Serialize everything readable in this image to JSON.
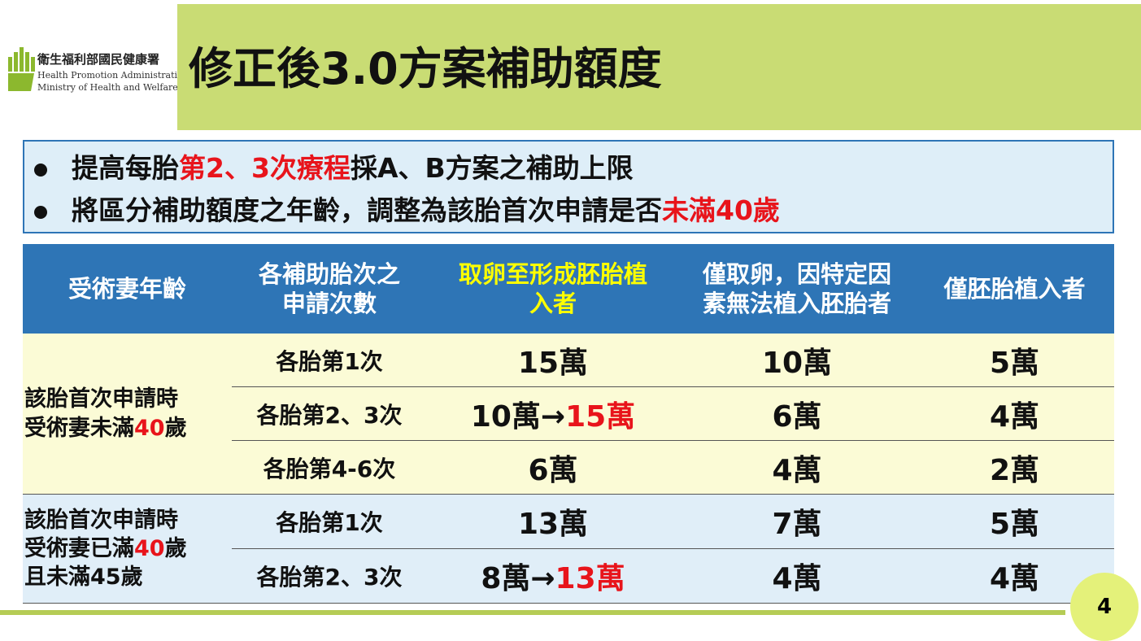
{
  "header": {
    "org": {
      "name_zh": "衛生福利部國民健康署",
      "name_en": [
        "Health Promotion Administration,",
        "Ministry of Health and Welfare"
      ]
    },
    "title": "修正後3.0方案補助額度"
  },
  "bullets": [
    [
      "提高每胎",
      "第2、3次療程",
      "採A、B方案之補助上限"
    ],
    [
      "將區分補助額度之年齡，調整為該胎首次申請是否",
      "未滿40歲"
    ]
  ],
  "table": {
    "headers": [
      [
        "受術妻年齡"
      ],
      [
        "各補助胎次之",
        "申請次數"
      ],
      [
        "取卵至形成胚胎植",
        "入者"
      ],
      [
        "僅取卵，因特定因",
        "素無法植入胚胎者"
      ],
      [
        "僅胚胎植入者"
      ]
    ],
    "groups": [
      {
        "label": [
          [
            "該胎首次申請時"
          ],
          [
            "受術妻未滿",
            "40",
            "歲"
          ]
        ],
        "rows": [
          [
            [
              "各胎第1次"
            ],
            [
              "15萬"
            ],
            [
              "10萬"
            ],
            [
              "5萬"
            ]
          ],
          [
            [
              "各胎第2、3次"
            ],
            [
              "10萬→",
              "15萬"
            ],
            [
              "6萬"
            ],
            [
              "4萬"
            ]
          ],
          [
            [
              "各胎第4-6次"
            ],
            [
              "6萬"
            ],
            [
              "4萬"
            ],
            [
              "2萬"
            ]
          ]
        ]
      },
      {
        "label": [
          [
            "該胎首次申請時"
          ],
          [
            "受術妻已滿",
            "40",
            "歲"
          ],
          [
            "且未滿45歲"
          ]
        ],
        "rows": [
          [
            [
              "各胎第1次"
            ],
            [
              "13萬"
            ],
            [
              "7萬"
            ],
            [
              "5萬"
            ]
          ],
          [
            [
              "各胎第2、3次"
            ],
            [
              "8萬→",
              "13萬"
            ],
            [
              "4萬"
            ],
            [
              "4萬"
            ]
          ]
        ]
      }
    ]
  },
  "page_number": "4"
}
